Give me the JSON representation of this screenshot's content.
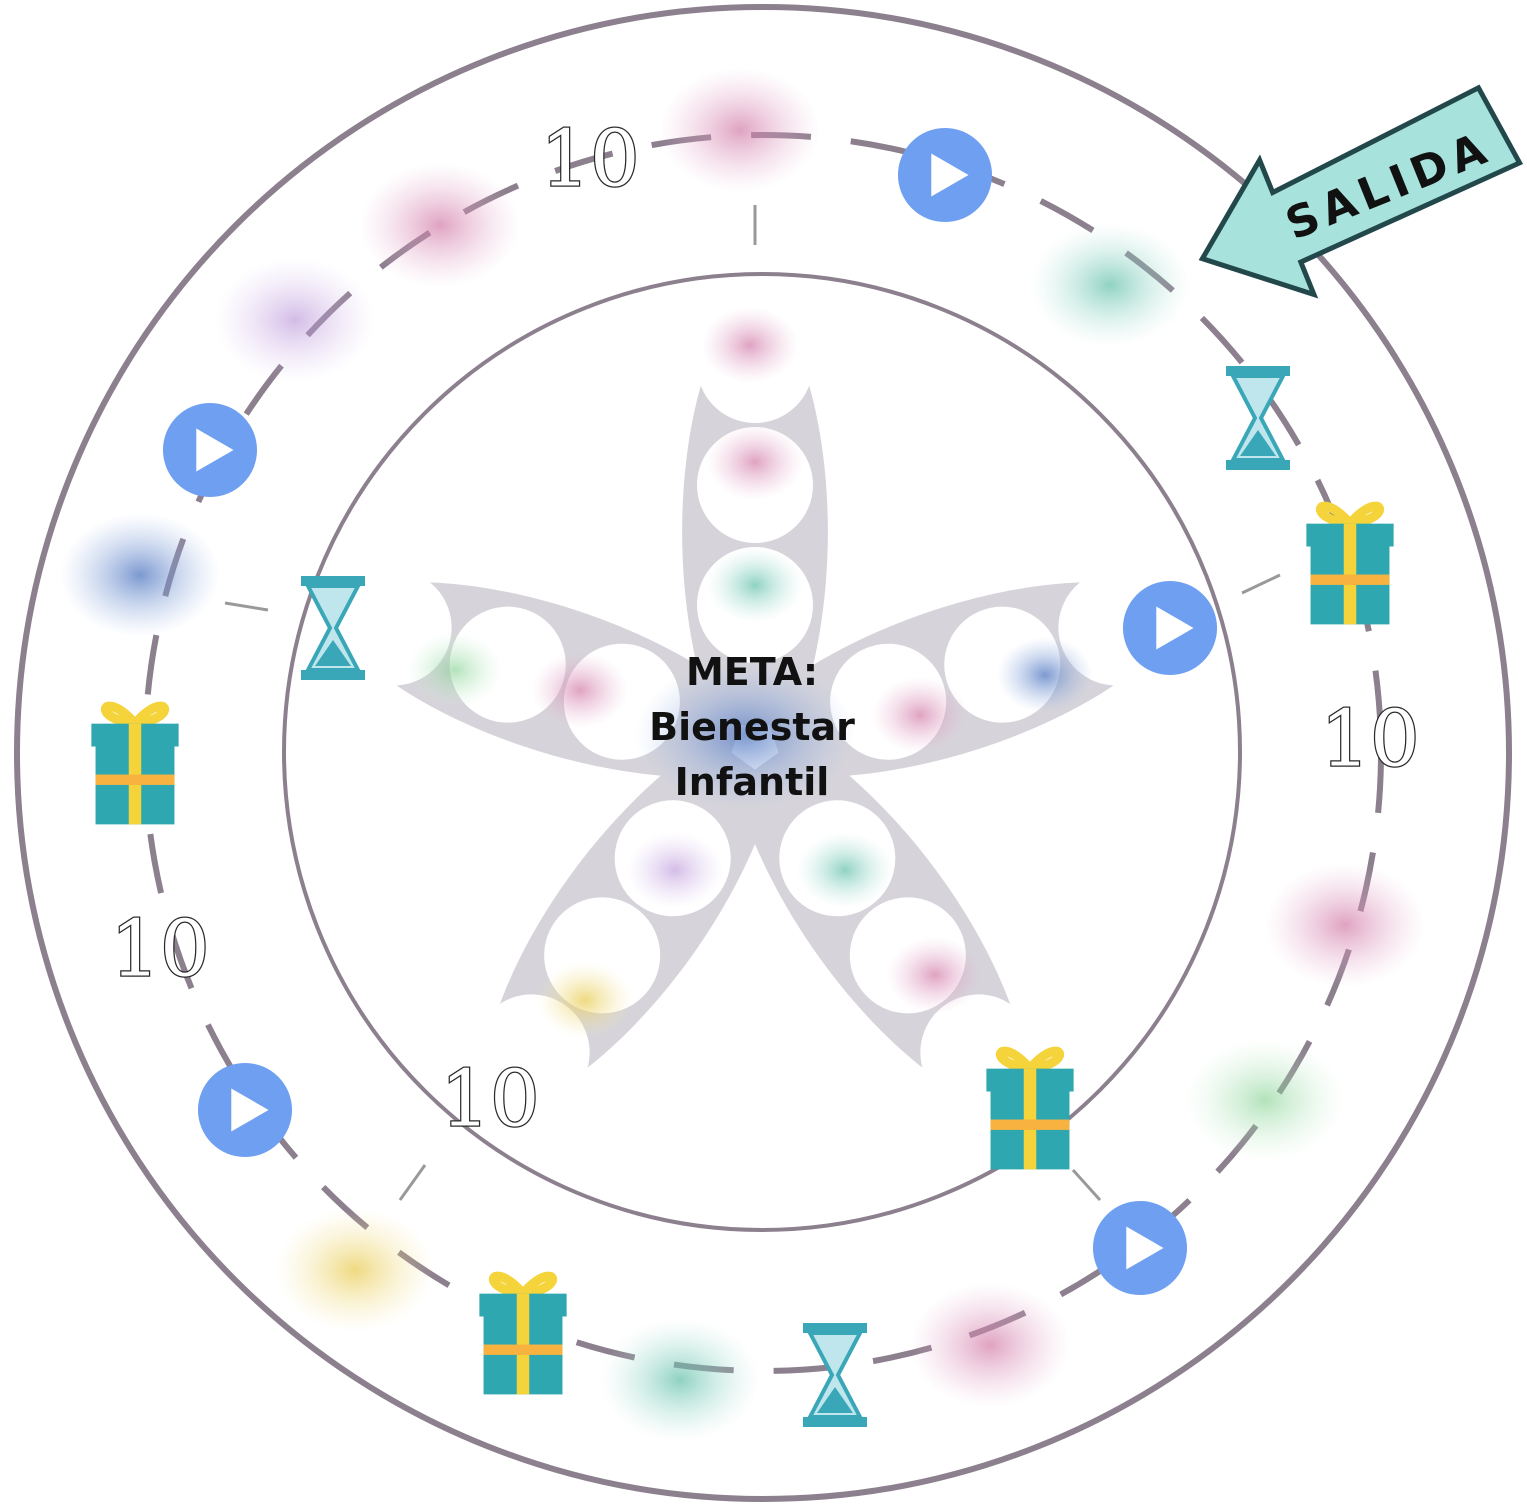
{
  "start_label": "SALIDA",
  "goal": {
    "lines": [
      "META:",
      "Bienestar",
      "Infantil"
    ]
  },
  "ten_squares": [
    "10",
    "10",
    "10",
    "10"
  ]
}
